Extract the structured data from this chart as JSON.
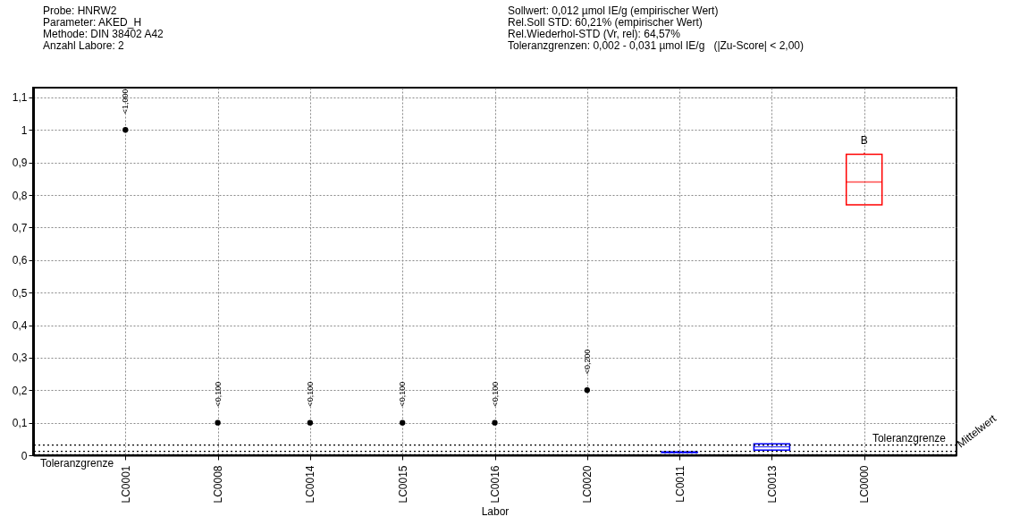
{
  "chart_data": {
    "type": "box",
    "annotations": [
      "Probe: HNRW2",
      "Parameter: AKED_H",
      "Methode: DIN 38402 A42",
      "Anzahl Labore: 2",
      "Sollwert: 0,012 µmol IE/g (empirischer Wert)",
      "Rel.Soll STD: 60,21% (empirischer Wert)",
      "Rel.Wiederhol-STD (Vr, rel): 64,57%",
      "Toleranzgrenzen: 0,002 - 0,031 µmol IE/g   (|Zu-Score| < 2,00)",
      {
        "text": "B",
        "x": "LC0000",
        "y": 0.93
      }
    ],
    "xlabel": "Labor",
    "categories": [
      "LC0001",
      "LC0008",
      "LC0014",
      "LC0015",
      "LC0016",
      "LC0020",
      "LC0011",
      "LC0013",
      "LC0000"
    ],
    "series": [
      {
        "type": "scatter",
        "color": "#000000",
        "values": [
          1,
          0.1,
          0.1,
          0.1,
          0.1,
          0.2,
          null,
          null,
          null
        ],
        "value_labels": [
          "<1,000",
          "<0,100",
          "<0,100",
          "<0,100",
          "<0,100",
          "<0,200",
          null,
          null,
          null
        ]
      },
      {
        "color": "#0000ff",
        "boxes": [
          null,
          null,
          null,
          null,
          null,
          null,
          {
            "low": 0.008,
            "q1": 0.008,
            "median": 0.009,
            "q3": 0.01,
            "high": 0.01
          },
          {
            "low": 0.016,
            "q1": 0.016,
            "median": 0.026,
            "q3": 0.035,
            "high": 0.035
          },
          null
        ]
      },
      {
        "color": "#ff0000",
        "boxes": [
          null,
          null,
          null,
          null,
          null,
          null,
          null,
          null,
          {
            "low": 0.77,
            "q1": 0.77,
            "median": 0.84,
            "q3": 0.925,
            "high": 0.93
          }
        ]
      }
    ],
    "ylim": [
      0,
      1.13
    ],
    "yticks": [
      0,
      {
        "value": 0.1,
        "label": "0,1"
      },
      {
        "value": 0.2,
        "label": "0,2"
      },
      {
        "value": 0.3,
        "label": "0,3"
      },
      {
        "value": 0.4,
        "label": "0,4"
      },
      {
        "value": 0.5,
        "label": "0,5"
      },
      {
        "value": 0.6,
        "label": "0,6"
      },
      {
        "value": 0.7,
        "label": "0,7"
      },
      {
        "value": 0.8,
        "label": "0,8"
      },
      {
        "value": 0.9,
        "label": "0,9"
      },
      1,
      {
        "value": 1.1,
        "label": "1,1"
      }
    ],
    "ref_lines": [
      {
        "axis": "y",
        "value": 0.031,
        "label": "Toleranzgrenze",
        "line_style": "dotted"
      },
      {
        "axis": "y",
        "value": 0.002,
        "label": "Toleranzgrenze",
        "line_style": "dotted"
      },
      {
        "axis": "y",
        "value": 0.012,
        "label": "Mittelwert",
        "line_style": "dotted"
      }
    ],
    "grid": true,
    "marker": "circle"
  }
}
